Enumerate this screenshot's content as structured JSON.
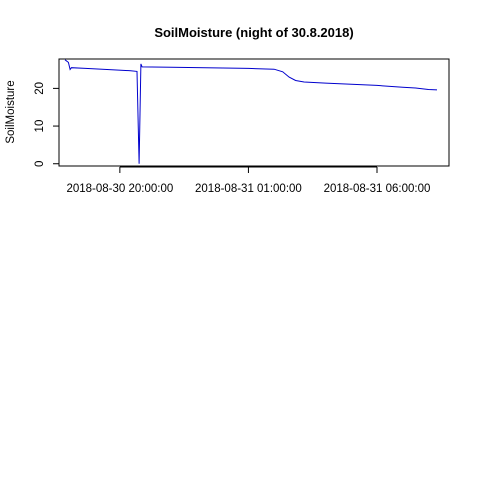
{
  "chart_data": {
    "type": "line",
    "title": "SoilMoisture (night of 30.8.2018)",
    "xlabel": "",
    "ylabel": "SoilMoisture",
    "x_ticks": [
      {
        "t": "2018-08-30 20:00:00",
        "label": "2018-08-30 20:00:00"
      },
      {
        "t": "2018-08-31 01:00:00",
        "label": "2018-08-31 01:00:00"
      },
      {
        "t": "2018-08-31 06:00:00",
        "label": "2018-08-31 06:00:00"
      }
    ],
    "y_ticks": [
      0,
      10,
      20
    ],
    "xlim": [
      "2018-08-30 17:38:00",
      "2018-08-31 08:48:00"
    ],
    "ylim": [
      -0.6,
      27.8
    ],
    "grid": false,
    "series": [
      {
        "color": "#0000cd",
        "points": [
          [
            "2018-08-30 17:52:00",
            27.6
          ],
          [
            "2018-08-30 18:00:00",
            26.9
          ],
          [
            "2018-08-30 18:04:00",
            25.0
          ],
          [
            "2018-08-30 18:07:00",
            25.5
          ],
          [
            "2018-08-30 18:40:00",
            25.3
          ],
          [
            "2018-08-30 19:30:00",
            25.0
          ],
          [
            "2018-08-30 20:25:00",
            24.7
          ],
          [
            "2018-08-30 20:40:00",
            24.5
          ],
          [
            "2018-08-30 20:45:00",
            0.0
          ],
          [
            "2018-08-30 20:47:00",
            13.2
          ],
          [
            "2018-08-30 20:49:00",
            26.5
          ],
          [
            "2018-08-30 20:52:00",
            25.7
          ],
          [
            "2018-08-30 22:00:00",
            25.6
          ],
          [
            "2018-08-31 00:00:00",
            25.4
          ],
          [
            "2018-08-31 01:00:00",
            25.3
          ],
          [
            "2018-08-31 02:00:00",
            25.1
          ],
          [
            "2018-08-31 02:20:00",
            24.4
          ],
          [
            "2018-08-31 02:35:00",
            23.0
          ],
          [
            "2018-08-31 02:50:00",
            22.1
          ],
          [
            "2018-08-31 03:10:00",
            21.7
          ],
          [
            "2018-08-31 04:00:00",
            21.4
          ],
          [
            "2018-08-31 05:00:00",
            21.1
          ],
          [
            "2018-08-31 06:00:00",
            20.8
          ],
          [
            "2018-08-31 07:00:00",
            20.3
          ],
          [
            "2018-08-31 07:30:00",
            20.1
          ],
          [
            "2018-08-31 08:00:00",
            19.7
          ],
          [
            "2018-08-31 08:20:00",
            19.6
          ]
        ]
      }
    ]
  }
}
